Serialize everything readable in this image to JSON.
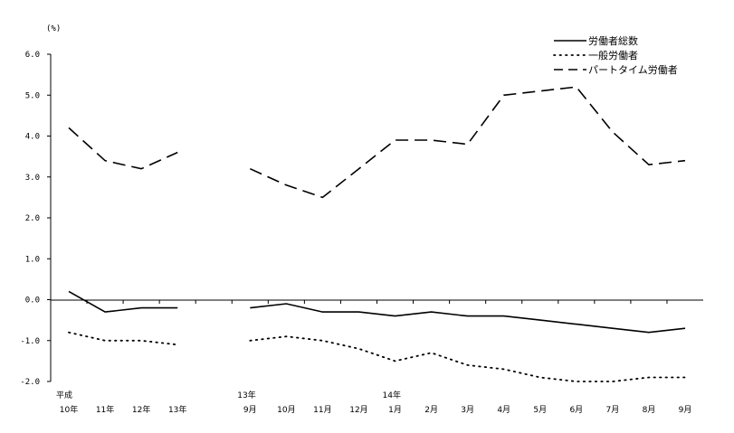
{
  "chart_data": {
    "type": "line",
    "unit_label": "(%)",
    "ylim": [
      -2.0,
      6.0
    ],
    "yticks": [
      "6.0",
      "5.0",
      "4.0",
      "3.0",
      "2.0",
      "1.0",
      "0.0",
      "-1.0",
      "-2.0"
    ],
    "grid": false,
    "legend_position": "top-right",
    "x_labels": [
      {
        "top": "平成",
        "bottom": "10年"
      },
      {
        "top": "",
        "bottom": "11年"
      },
      {
        "top": "",
        "bottom": "12年"
      },
      {
        "top": "",
        "bottom": "13年"
      },
      {
        "top": "",
        "bottom": ""
      },
      {
        "top": "13年",
        "bottom": "9月"
      },
      {
        "top": "",
        "bottom": "10月"
      },
      {
        "top": "",
        "bottom": "11月"
      },
      {
        "top": "",
        "bottom": "12月"
      },
      {
        "top": "14年",
        "bottom": "1月"
      },
      {
        "top": "",
        "bottom": "2月"
      },
      {
        "top": "",
        "bottom": "3月"
      },
      {
        "top": "",
        "bottom": "4月"
      },
      {
        "top": "",
        "bottom": "5月"
      },
      {
        "top": "",
        "bottom": "6月"
      },
      {
        "top": "",
        "bottom": "7月"
      },
      {
        "top": "",
        "bottom": "8月"
      },
      {
        "top": "",
        "bottom": "9月"
      }
    ],
    "series": [
      {
        "name": "労働者総数",
        "style": "solid",
        "values": [
          0.2,
          -0.3,
          -0.2,
          -0.2,
          null,
          -0.2,
          -0.1,
          -0.3,
          -0.3,
          -0.4,
          -0.3,
          -0.4,
          -0.4,
          -0.5,
          -0.6,
          -0.7,
          -0.8,
          -0.7
        ]
      },
      {
        "name": "一般労働者",
        "style": "dotted",
        "values": [
          -0.8,
          -1.0,
          -1.0,
          -1.1,
          null,
          -1.0,
          -0.9,
          -1.0,
          -1.2,
          -1.5,
          -1.3,
          -1.6,
          -1.7,
          -1.9,
          -2.0,
          -2.0,
          -1.9,
          -1.9
        ]
      },
      {
        "name": "パートタイム労働者",
        "style": "dashed",
        "values": [
          4.2,
          3.4,
          3.2,
          3.6,
          null,
          3.2,
          2.8,
          2.5,
          3.2,
          3.9,
          3.9,
          3.8,
          5.0,
          5.1,
          5.2,
          4.1,
          3.3,
          3.4
        ]
      }
    ]
  }
}
